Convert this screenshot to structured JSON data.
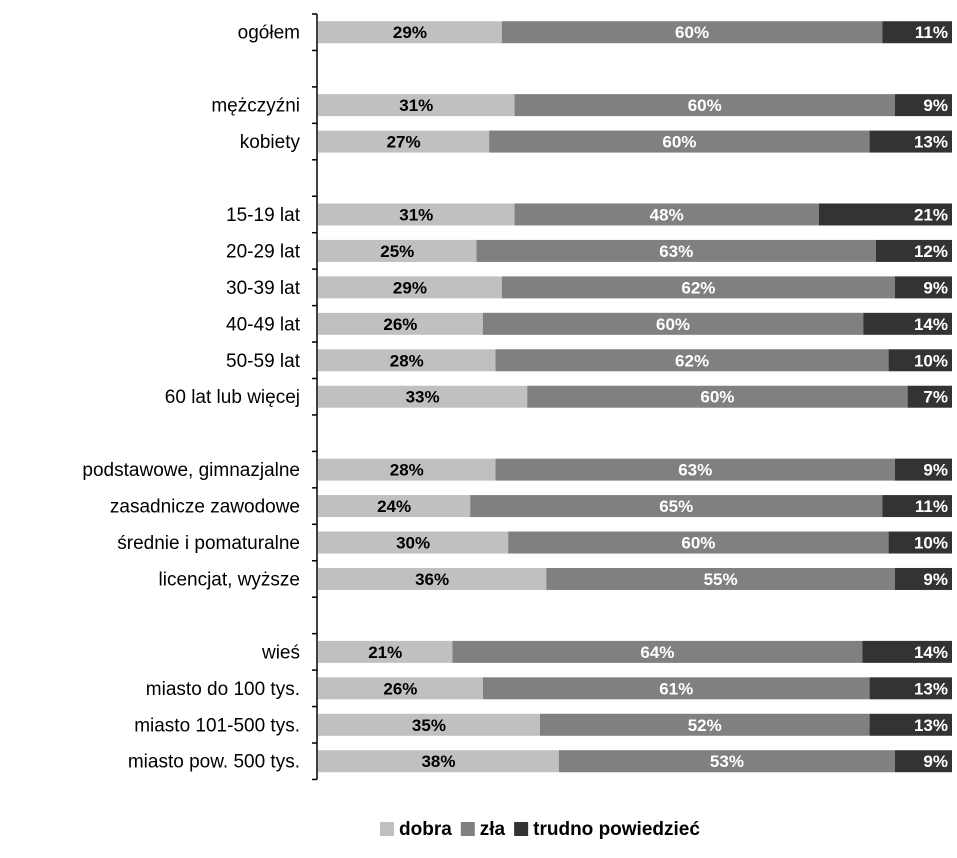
{
  "chart_data": {
    "type": "bar",
    "orientation": "horizontal",
    "stacked": true,
    "percent_stacked": true,
    "value_format": "{v}%",
    "grid": false,
    "legend_position": "bottom",
    "colors": {
      "dobra": "#c0c0c0",
      "zla": "#808080",
      "trudno": "#333333",
      "label_dark": "#000000",
      "label_light": "#ffffff"
    },
    "rows": [
      {
        "label": "ogółem",
        "values": [
          29,
          60,
          11
        ]
      },
      {
        "label": "",
        "spacer": true
      },
      {
        "label": "mężczyźni",
        "values": [
          31,
          60,
          9
        ]
      },
      {
        "label": "kobiety",
        "values": [
          27,
          60,
          13
        ]
      },
      {
        "label": "",
        "spacer": true
      },
      {
        "label": "15-19 lat",
        "values": [
          31,
          48,
          21
        ]
      },
      {
        "label": "20-29 lat",
        "values": [
          25,
          63,
          12
        ]
      },
      {
        "label": "30-39 lat",
        "values": [
          29,
          62,
          9
        ]
      },
      {
        "label": "40-49 lat",
        "values": [
          26,
          60,
          14
        ]
      },
      {
        "label": "50-59 lat",
        "values": [
          28,
          62,
          10
        ]
      },
      {
        "label": "60 lat lub więcej",
        "values": [
          33,
          60,
          7
        ]
      },
      {
        "label": "",
        "spacer": true
      },
      {
        "label": "podstawowe, gimnazjalne",
        "values": [
          28,
          63,
          9
        ]
      },
      {
        "label": "zasadnicze zawodowe",
        "values": [
          24,
          65,
          11
        ]
      },
      {
        "label": "średnie i pomaturalne",
        "values": [
          30,
          60,
          10
        ]
      },
      {
        "label": "licencjat, wyższe",
        "values": [
          36,
          55,
          9
        ]
      },
      {
        "label": "",
        "spacer": true
      },
      {
        "label": "wieś",
        "values": [
          21,
          64,
          14
        ]
      },
      {
        "label": "miasto do 100 tys.",
        "values": [
          26,
          61,
          13
        ]
      },
      {
        "label": "miasto 101-500 tys.",
        "values": [
          35,
          52,
          13
        ]
      },
      {
        "label": "miasto pow. 500 tys.",
        "values": [
          38,
          53,
          9
        ]
      }
    ],
    "series": [
      {
        "name": "dobra",
        "color": "#c0c0c0",
        "label_color": "#000000"
      },
      {
        "name": "zła",
        "color": "#808080",
        "label_color": "#ffffff"
      },
      {
        "name": "trudno powiedzieć",
        "color": "#333333",
        "label_color": "#ffffff"
      }
    ]
  }
}
